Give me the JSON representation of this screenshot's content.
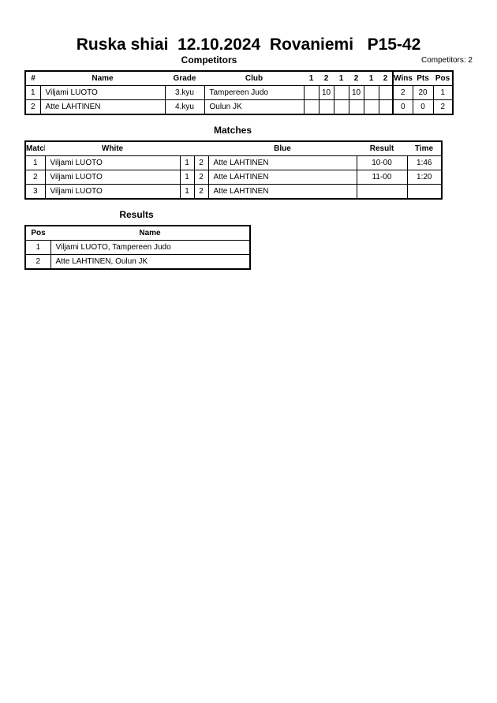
{
  "header": {
    "title": "Ruska shiai  12.10.2024  Rovaniemi   P15-42",
    "competitors_label": "Competitors",
    "competitors_count": "Competitors: 2"
  },
  "competitors": {
    "columns": [
      "#",
      "Name",
      "Grade",
      "Club",
      "1",
      "2",
      "1",
      "2",
      "1",
      "2",
      "Wins",
      "Pts",
      "Pos"
    ],
    "rows": [
      [
        "1",
        "Viljami LUOTO",
        "3.kyu",
        "Tampereen Judo",
        "",
        "10",
        "",
        "10",
        "",
        "",
        "2",
        "20",
        "1"
      ],
      [
        "2",
        "Atte LAHTINEN",
        "4.kyu",
        "Oulun JK",
        "",
        "",
        "",
        "",
        "",
        "",
        "0",
        "0",
        "2"
      ]
    ]
  },
  "matches": {
    "title": "Matches",
    "columns": [
      "Match",
      "White",
      "Blue",
      "Result",
      "Time"
    ],
    "rows": [
      [
        "1",
        "Viljami LUOTO",
        "1",
        "2",
        "Atte LAHTINEN",
        "10-00",
        "1:46"
      ],
      [
        "2",
        "Viljami LUOTO",
        "1",
        "2",
        "Atte LAHTINEN",
        "11-00",
        "1:20"
      ],
      [
        "3",
        "Viljami LUOTO",
        "1",
        "2",
        "Atte LAHTINEN",
        "",
        ""
      ]
    ]
  },
  "results": {
    "title": "Results",
    "columns": [
      "Pos",
      "Name"
    ],
    "rows": [
      [
        "1",
        "Viljami LUOTO, Tampereen Judo"
      ],
      [
        "2",
        "Atte LAHTINEN, Oulun JK"
      ]
    ]
  }
}
